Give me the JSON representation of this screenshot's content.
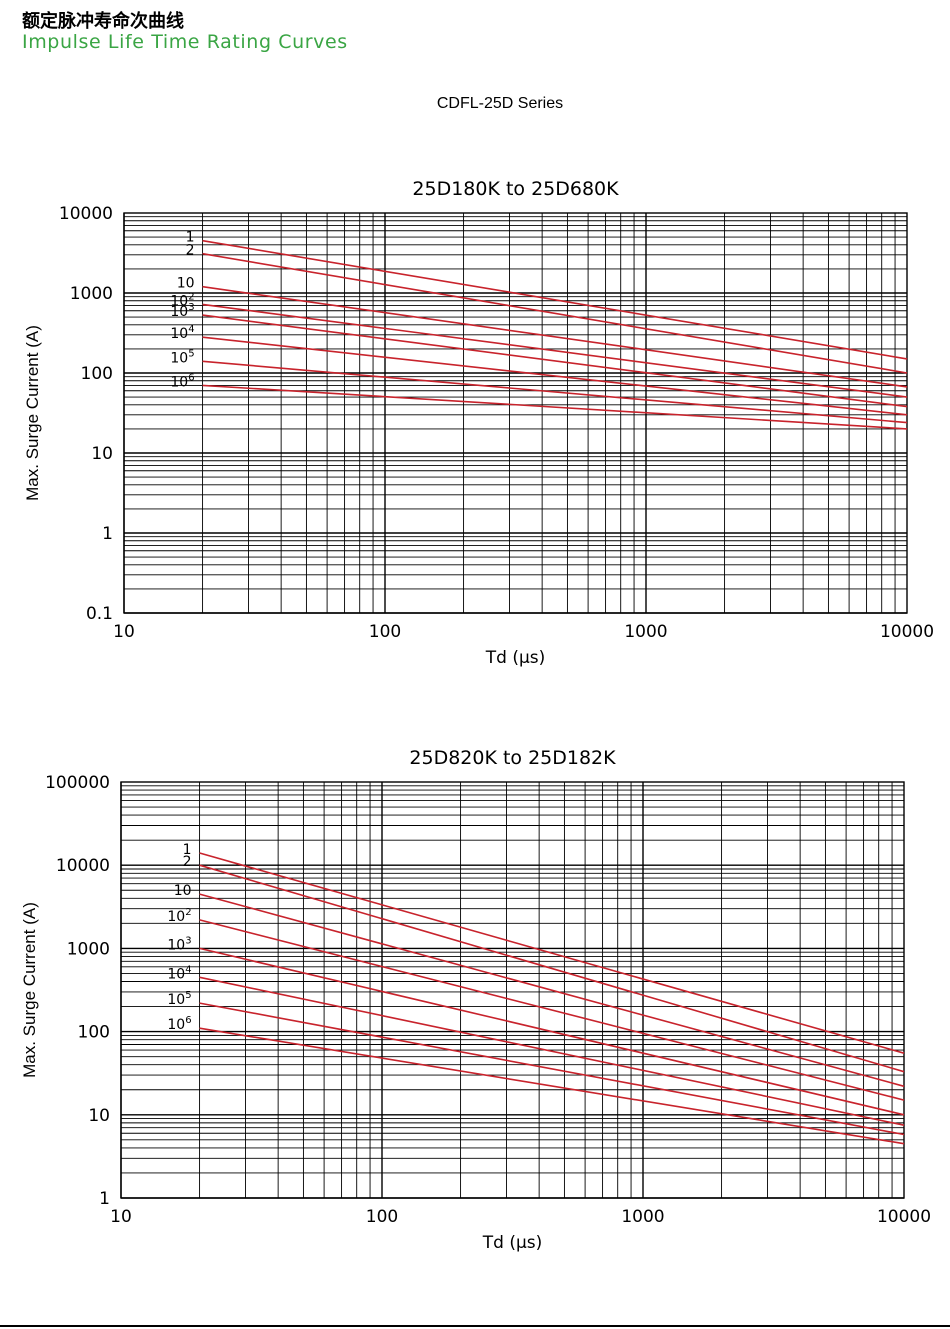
{
  "header": {
    "title_cn": "额定脉冲寿命次曲线",
    "title_en": "Impulse Life Time Rating Curves",
    "series": "CDFL-25D Series"
  },
  "colors": {
    "accent_green": "#3aa544",
    "curve_red": "#c8232c",
    "grid": "#000000"
  },
  "chart_data": [
    {
      "type": "line",
      "title": "25D180K  to  25D680K",
      "xlabel": "Td (μs)",
      "ylabel": "Max. Surge Current (A)",
      "xscale": "log",
      "yscale": "log",
      "xlim": [
        10,
        10000
      ],
      "ylim": [
        0.1,
        10000
      ],
      "x_ticks": [
        "10",
        "100",
        "1000",
        "10000"
      ],
      "y_ticks": [
        "0.1",
        "1",
        "10",
        "100",
        "1000",
        "10000"
      ],
      "grid": true,
      "series": [
        {
          "name": "1",
          "label_base": "1",
          "label_exp": "",
          "x": [
            20,
            10000
          ],
          "y": [
            4500,
            150
          ]
        },
        {
          "name": "2",
          "label_base": "2",
          "label_exp": "",
          "x": [
            20,
            10000
          ],
          "y": [
            3100,
            100
          ]
        },
        {
          "name": "10",
          "label_base": "10",
          "label_exp": "",
          "x": [
            20,
            10000
          ],
          "y": [
            1200,
            67
          ]
        },
        {
          "name": "10²",
          "label_base": "10",
          "label_exp": "2",
          "x": [
            20,
            10000
          ],
          "y": [
            720,
            50
          ]
        },
        {
          "name": "10³",
          "label_base": "10",
          "label_exp": "3",
          "x": [
            20,
            10000
          ],
          "y": [
            530,
            38
          ]
        },
        {
          "name": "10⁴",
          "label_base": "10",
          "label_exp": "4",
          "x": [
            20,
            10000
          ],
          "y": [
            280,
            30
          ]
        },
        {
          "name": "10⁵",
          "label_base": "10",
          "label_exp": "5",
          "x": [
            20,
            10000
          ],
          "y": [
            140,
            24
          ]
        },
        {
          "name": "10⁶",
          "label_base": "10",
          "label_exp": "6",
          "x": [
            20,
            10000
          ],
          "y": [
            70,
            20
          ]
        }
      ]
    },
    {
      "type": "line",
      "title": "25D820K  to  25D182K",
      "xlabel": "Td (μs)",
      "ylabel": "Max. Surge Current (A)",
      "xscale": "log",
      "yscale": "log",
      "xlim": [
        10,
        10000
      ],
      "ylim": [
        1,
        100000
      ],
      "x_ticks": [
        "10",
        "100",
        "1000",
        "10000"
      ],
      "y_ticks": [
        "1",
        "10",
        "100",
        "1000",
        "10000",
        "100000"
      ],
      "grid": true,
      "series": [
        {
          "name": "1",
          "label_base": "1",
          "label_exp": "",
          "x": [
            20,
            10000
          ],
          "y": [
            14000,
            55
          ]
        },
        {
          "name": "2",
          "label_base": "2",
          "label_exp": "",
          "x": [
            20,
            10000
          ],
          "y": [
            10000,
            33
          ]
        },
        {
          "name": "10",
          "label_base": "10",
          "label_exp": "",
          "x": [
            20,
            10000
          ],
          "y": [
            4500,
            22
          ]
        },
        {
          "name": "10²",
          "label_base": "10",
          "label_exp": "2",
          "x": [
            20,
            10000
          ],
          "y": [
            2200,
            15
          ]
        },
        {
          "name": "10³",
          "label_base": "10",
          "label_exp": "3",
          "x": [
            20,
            10000
          ],
          "y": [
            1000,
            10
          ]
        },
        {
          "name": "10⁴",
          "label_base": "10",
          "label_exp": "4",
          "x": [
            20,
            10000
          ],
          "y": [
            450,
            7.5
          ]
        },
        {
          "name": "10⁵",
          "label_base": "10",
          "label_exp": "5",
          "x": [
            20,
            10000
          ],
          "y": [
            220,
            5.8
          ]
        },
        {
          "name": "10⁶",
          "label_base": "10",
          "label_exp": "6",
          "x": [
            20,
            10000
          ],
          "y": [
            110,
            4.5
          ]
        }
      ]
    }
  ]
}
